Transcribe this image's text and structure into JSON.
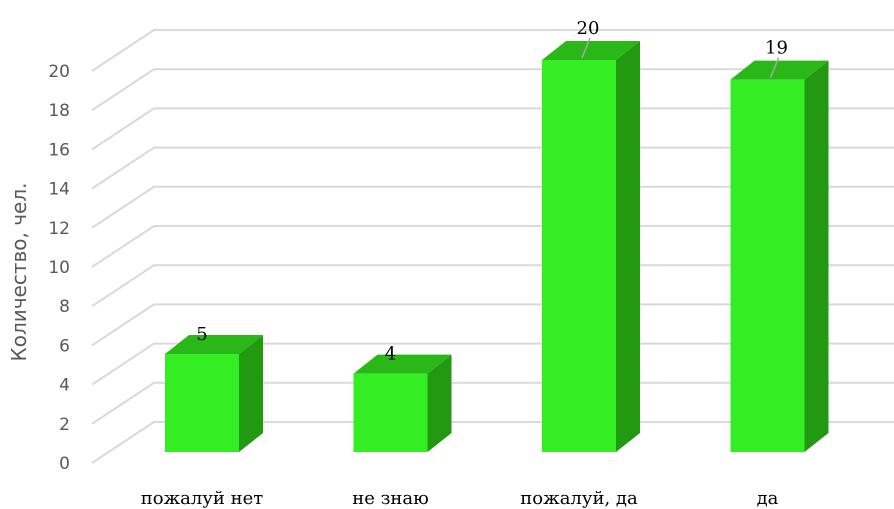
{
  "chart_data": {
    "type": "bar",
    "title": "",
    "xlabel": "",
    "ylabel": "Количество, чел.",
    "ylim": [
      0,
      20
    ],
    "yticks": [
      0,
      2,
      4,
      6,
      8,
      10,
      12,
      14,
      16,
      18,
      20
    ],
    "categories": [
      "пожалуй нет",
      "не знаю",
      "пожалуй, да",
      "да"
    ],
    "values": [
      5,
      4,
      20,
      19
    ],
    "data_labels": [
      "5",
      "4",
      "20",
      "19"
    ],
    "grid": true,
    "legend": "none",
    "three_d": true
  },
  "colors": {
    "bar_front": "#33ee22",
    "bar_side": "#229911",
    "bar_top": "#2ab818",
    "gridline": "#d9d9d9",
    "axis_text": "#595959"
  }
}
